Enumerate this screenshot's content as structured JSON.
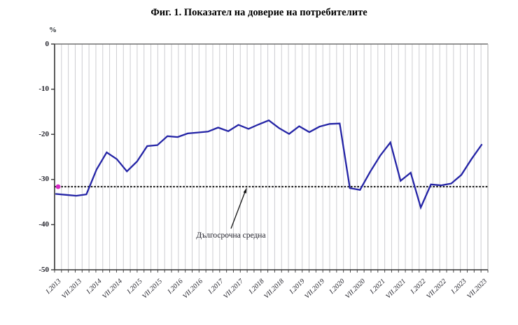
{
  "chart_data": {
    "type": "line",
    "title": "Фиг. 1. Показател на доверие на потребителите",
    "xlabel": "",
    "ylabel": "%",
    "ylim": [
      -50,
      0
    ],
    "yticks": [
      0,
      -10,
      -20,
      -30,
      -40,
      -50
    ],
    "grid": "vertical-only",
    "gridlines_per_label_interval": 3,
    "x_tick_labels": [
      "I.2013",
      "VII.2013",
      "I.2014",
      "VII.2014",
      "I.2015",
      "VII.2015",
      "I.2016",
      "VII.2016",
      "I.2017",
      "VII.2017",
      "I.2018",
      "VII.2018",
      "I.2019",
      "VII.2019",
      "I.2020",
      "VII.2020",
      "I.2021",
      "VII.2021",
      "I.2022",
      "VII.2022",
      "I.2023",
      "VII.2023"
    ],
    "points_per_label_interval": 2,
    "series": [
      {
        "name": "Показател на доверие на потребителите",
        "color": "#2424a6",
        "frequency": "quarterly",
        "values": [
          -33.2,
          -33.4,
          -33.6,
          -33.3,
          -27.8,
          -24.0,
          -25.5,
          -28.2,
          -26.0,
          -22.6,
          -22.4,
          -20.4,
          -20.6,
          -19.8,
          -19.6,
          -19.4,
          -18.5,
          -19.3,
          -17.9,
          -18.8,
          -17.8,
          -16.9,
          -18.6,
          -19.9,
          -18.2,
          -19.5,
          -18.3,
          -17.7,
          -17.6,
          -31.9,
          -32.3,
          -28.3,
          -24.7,
          -21.8,
          -30.3,
          -28.5,
          -36.2,
          -31.1,
          -31.3,
          -30.9,
          -29.0,
          -25.5,
          -22.3
        ]
      }
    ],
    "average_line": {
      "label": "Дългосрочна средна",
      "value": -31.6,
      "style": "dashed",
      "color": "#141414",
      "marker_color": "#d629c4"
    },
    "legend": "none"
  }
}
